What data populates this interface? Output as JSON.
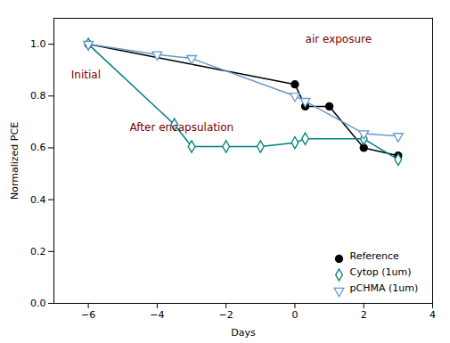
{
  "chart_data": {
    "type": "line",
    "xlabel": "Days",
    "ylabel": "Normalized PCE",
    "xlim": [
      -7,
      4
    ],
    "ylim": [
      0.0,
      1.1
    ],
    "xticks": [
      -6,
      -4,
      -2,
      0,
      2,
      4
    ],
    "yticks": [
      {
        "value": 0.0,
        "label": "0.0"
      },
      0.2,
      0.4,
      0.6,
      0.8,
      {
        "value": 1.0,
        "label": "1.0"
      }
    ],
    "legend": "lower right",
    "series": [
      {
        "name": "Reference",
        "color": "#000000",
        "marker": "circle",
        "x": [
          -6,
          0,
          0.3,
          1,
          2,
          3
        ],
        "values": [
          1.0,
          0.845,
          0.76,
          0.76,
          0.6,
          0.57
        ]
      },
      {
        "name": "Cytop (1um)",
        "color": "#008080",
        "marker": "diamond",
        "x": [
          -6,
          -3.5,
          -3,
          -2,
          -1,
          0,
          0.3,
          2,
          3
        ],
        "values": [
          1.0,
          0.69,
          0.605,
          0.605,
          0.605,
          0.62,
          0.635,
          0.635,
          0.555
        ]
      },
      {
        "name": "pCHMA (1um)",
        "color": "#6699cc",
        "marker": "triangle_down",
        "x": [
          -6,
          -4,
          -3,
          0,
          0.3,
          2,
          3
        ],
        "values": [
          1.0,
          0.96,
          0.945,
          0.8,
          0.78,
          0.655,
          0.645
        ]
      }
    ],
    "annotations": [
      {
        "text": "Initial",
        "x": -6.5,
        "y": 0.88,
        "color": "#800000"
      },
      {
        "text": "After encapsulation",
        "x": -4.8,
        "y": 0.68,
        "color": "#800000"
      },
      {
        "text": "air exposure",
        "x": 0.3,
        "y": 1.02,
        "color": "#800000"
      }
    ]
  }
}
